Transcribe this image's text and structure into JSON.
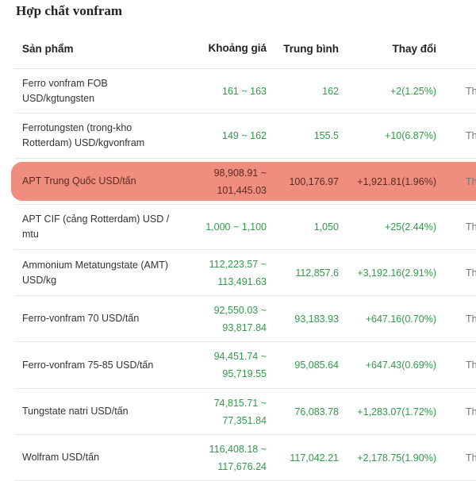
{
  "title": "Hợp chất vonfram",
  "columns": {
    "product": "Sản phẩm",
    "range": "Khoảng giá",
    "average": "Trung bình",
    "change": "Thay đổi",
    "extra": ""
  },
  "rows": [
    {
      "product_l1": "Ferro vonfram FOB",
      "product_l2": "USD/kgtungsten",
      "range_l1": "161 ~ 163",
      "range_l2": "",
      "average": "162",
      "change": "+2(1.25%)",
      "extra": "Th"
    },
    {
      "product_l1": "Ferrotungsten (trong-kho",
      "product_l2": "Rotterdam) USD/kgvonfram",
      "range_l1": "149 ~ 162",
      "range_l2": "",
      "average": "155.5",
      "change": "+10(6.87%)",
      "extra": "Th"
    },
    {
      "product_l1": "APT Trung Quốc USD/tấn",
      "product_l2": "",
      "range_l1": "98,908.91 ~",
      "range_l2": "101,445.03",
      "average": "100,176.97",
      "change": "+1,921.81(1.96%)",
      "extra": "Th"
    },
    {
      "product_l1": "APT CIF (cảng Rotterdam) USD /",
      "product_l2": "mtu",
      "range_l1": "1,000 ~ 1,100",
      "range_l2": "",
      "average": "1,050",
      "change": "+25(2.44%)",
      "extra": "Th"
    },
    {
      "product_l1": "Ammonium Metatungstate (AMT)",
      "product_l2": "USD/kg",
      "range_l1": "112,223.57 ~",
      "range_l2": "113,491.63",
      "average": "112,857.6",
      "change": "+3,192.16(2.91%)",
      "extra": "Th"
    },
    {
      "product_l1": "Ferro-vonfram 70 USD/tấn",
      "product_l2": "",
      "range_l1": "92,550.03 ~",
      "range_l2": "93,817.84",
      "average": "93,183.93",
      "change": "+647.16(0.70%)",
      "extra": "Th"
    },
    {
      "product_l1": "Ferro-vonfram 75-85 USD/tấn",
      "product_l2": "",
      "range_l1": "94,451.74 ~",
      "range_l2": "95,719.55",
      "average": "95,085.64",
      "change": "+647.43(0.69%)",
      "extra": "Th"
    },
    {
      "product_l1": "Tungstate natri USD/tấn",
      "product_l2": "",
      "range_l1": "74,815.71 ~",
      "range_l2": "77,351.84",
      "average": "76,083.78",
      "change": "+1,283.07(1.72%)",
      "extra": "Th"
    },
    {
      "product_l1": "Wolfram USD/tấn",
      "product_l2": "",
      "range_l1": "116,408.18 ~",
      "range_l2": "117,676.24",
      "average": "117,042.21",
      "change": "+2,178.75(1.90%)",
      "extra": "Th"
    }
  ],
  "colors": {
    "positive": "#2f9a4a",
    "highlight": "#ef8e7e"
  }
}
